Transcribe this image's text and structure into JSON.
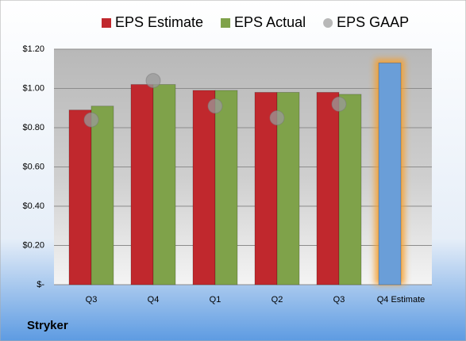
{
  "chart_data": {
    "type": "bar",
    "title": "Stryker",
    "categories": [
      "Q3",
      "Q4",
      "Q1",
      "Q2",
      "Q3",
      "Q4 Estimate"
    ],
    "series": [
      {
        "name": "EPS Estimate",
        "color": "#c0282d",
        "values": [
          0.89,
          1.02,
          0.99,
          0.98,
          0.98,
          1.13
        ],
        "point_colors": [
          "#c0282d",
          "#c0282d",
          "#c0282d",
          "#c0282d",
          "#c0282d",
          "#6a9ed8"
        ]
      },
      {
        "name": "EPS Actual",
        "color": "#7fa24a",
        "values": [
          0.91,
          1.02,
          0.99,
          0.98,
          0.97,
          null
        ]
      },
      {
        "name": "EPS GAAP",
        "color": "#9a9a9a",
        "values": [
          0.84,
          1.04,
          0.91,
          0.85,
          0.92,
          null
        ],
        "marker": "circle"
      }
    ],
    "ylim": [
      0,
      1.2
    ],
    "yticks": [
      {
        "value": 0,
        "label": "$-"
      },
      {
        "value": 0.2,
        "label": "$0.20"
      },
      {
        "value": 0.4,
        "label": "$0.40"
      },
      {
        "value": 0.6,
        "label": "$0.60"
      },
      {
        "value": 0.8,
        "label": "$0.80"
      },
      {
        "value": 1.0,
        "label": "$1.00"
      },
      {
        "value": 1.2,
        "label": "$1.20"
      }
    ],
    "grid": true,
    "legend": "top"
  }
}
